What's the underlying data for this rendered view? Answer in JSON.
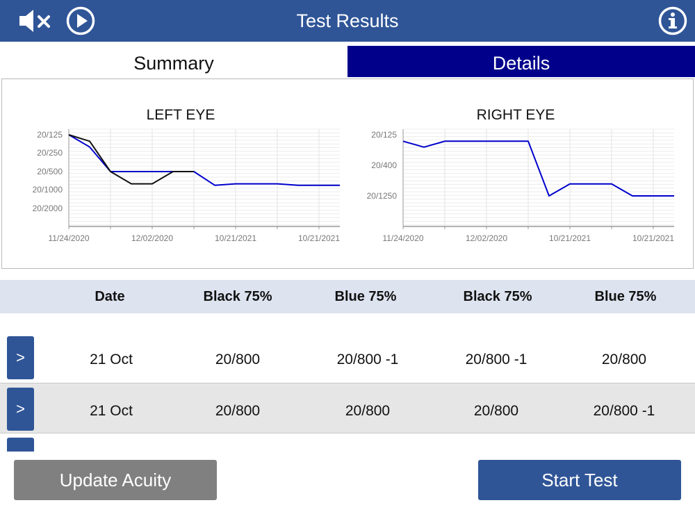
{
  "header": {
    "title": "Test Results",
    "icons": [
      "speaker-muted-icon",
      "play-icon",
      "info-icon"
    ]
  },
  "tabs": [
    {
      "label": "Summary",
      "selected": false
    },
    {
      "label": "Details",
      "selected": true
    }
  ],
  "colors": {
    "header": "#2f5597",
    "tab_selected": "#00008b",
    "line_blue": "#0000cc",
    "line_black": "#111111",
    "button_gray": "#808080"
  },
  "chart_data": [
    {
      "type": "line",
      "title": "LEFT EYE",
      "y_ticks": [
        "20/125",
        "20/250",
        "20/500",
        "20/1000",
        "20/2000"
      ],
      "x_ticks": [
        "11/24/2020",
        "12/02/2020",
        "10/21/2021",
        "10/21/2021"
      ],
      "grid": true,
      "series": [
        {
          "color": "#0000cc",
          "values": [
            "20/125",
            "20/200",
            "20/500",
            "20/500",
            "20/500",
            "20/500",
            "20/500",
            "20/800 -1",
            "20/800",
            "20/800",
            "20/800",
            "20/800 -1",
            "20/800 -1",
            "20/800 -1"
          ]
        },
        {
          "color": "#111111",
          "values": [
            "20/125",
            "20/160",
            "20/500",
            "20/800",
            "20/800",
            "20/500",
            "20/500"
          ]
        }
      ]
    },
    {
      "type": "line",
      "title": "RIGHT EYE",
      "y_ticks": [
        "20/125",
        "20/400",
        "20/1250"
      ],
      "x_ticks": [
        "11/24/2020",
        "12/02/2020",
        "10/21/2021",
        "10/21/2021"
      ],
      "grid": true,
      "series": [
        {
          "color": "#0000cc",
          "values": [
            "20/160",
            "20/200",
            "20/160",
            "20/160",
            "20/160",
            "20/160",
            "20/160",
            "20/1250",
            "20/800",
            "20/800",
            "20/800",
            "20/1250",
            "20/1250",
            "20/1250"
          ]
        }
      ]
    }
  ],
  "table": {
    "headers": [
      "Date",
      "Black 75%",
      "Blue 75%",
      "Black 75%",
      "Blue 75%"
    ],
    "row_button_label": ">",
    "rows": [
      [
        "21 Oct",
        "20/800",
        "20/800 -1",
        "20/800 -1",
        "20/800"
      ],
      [
        "21 Oct",
        "20/800",
        "20/800",
        "20/800",
        "20/800 -1"
      ]
    ]
  },
  "buttons": {
    "update_acuity": "Update Acuity",
    "start_test": "Start Test"
  }
}
